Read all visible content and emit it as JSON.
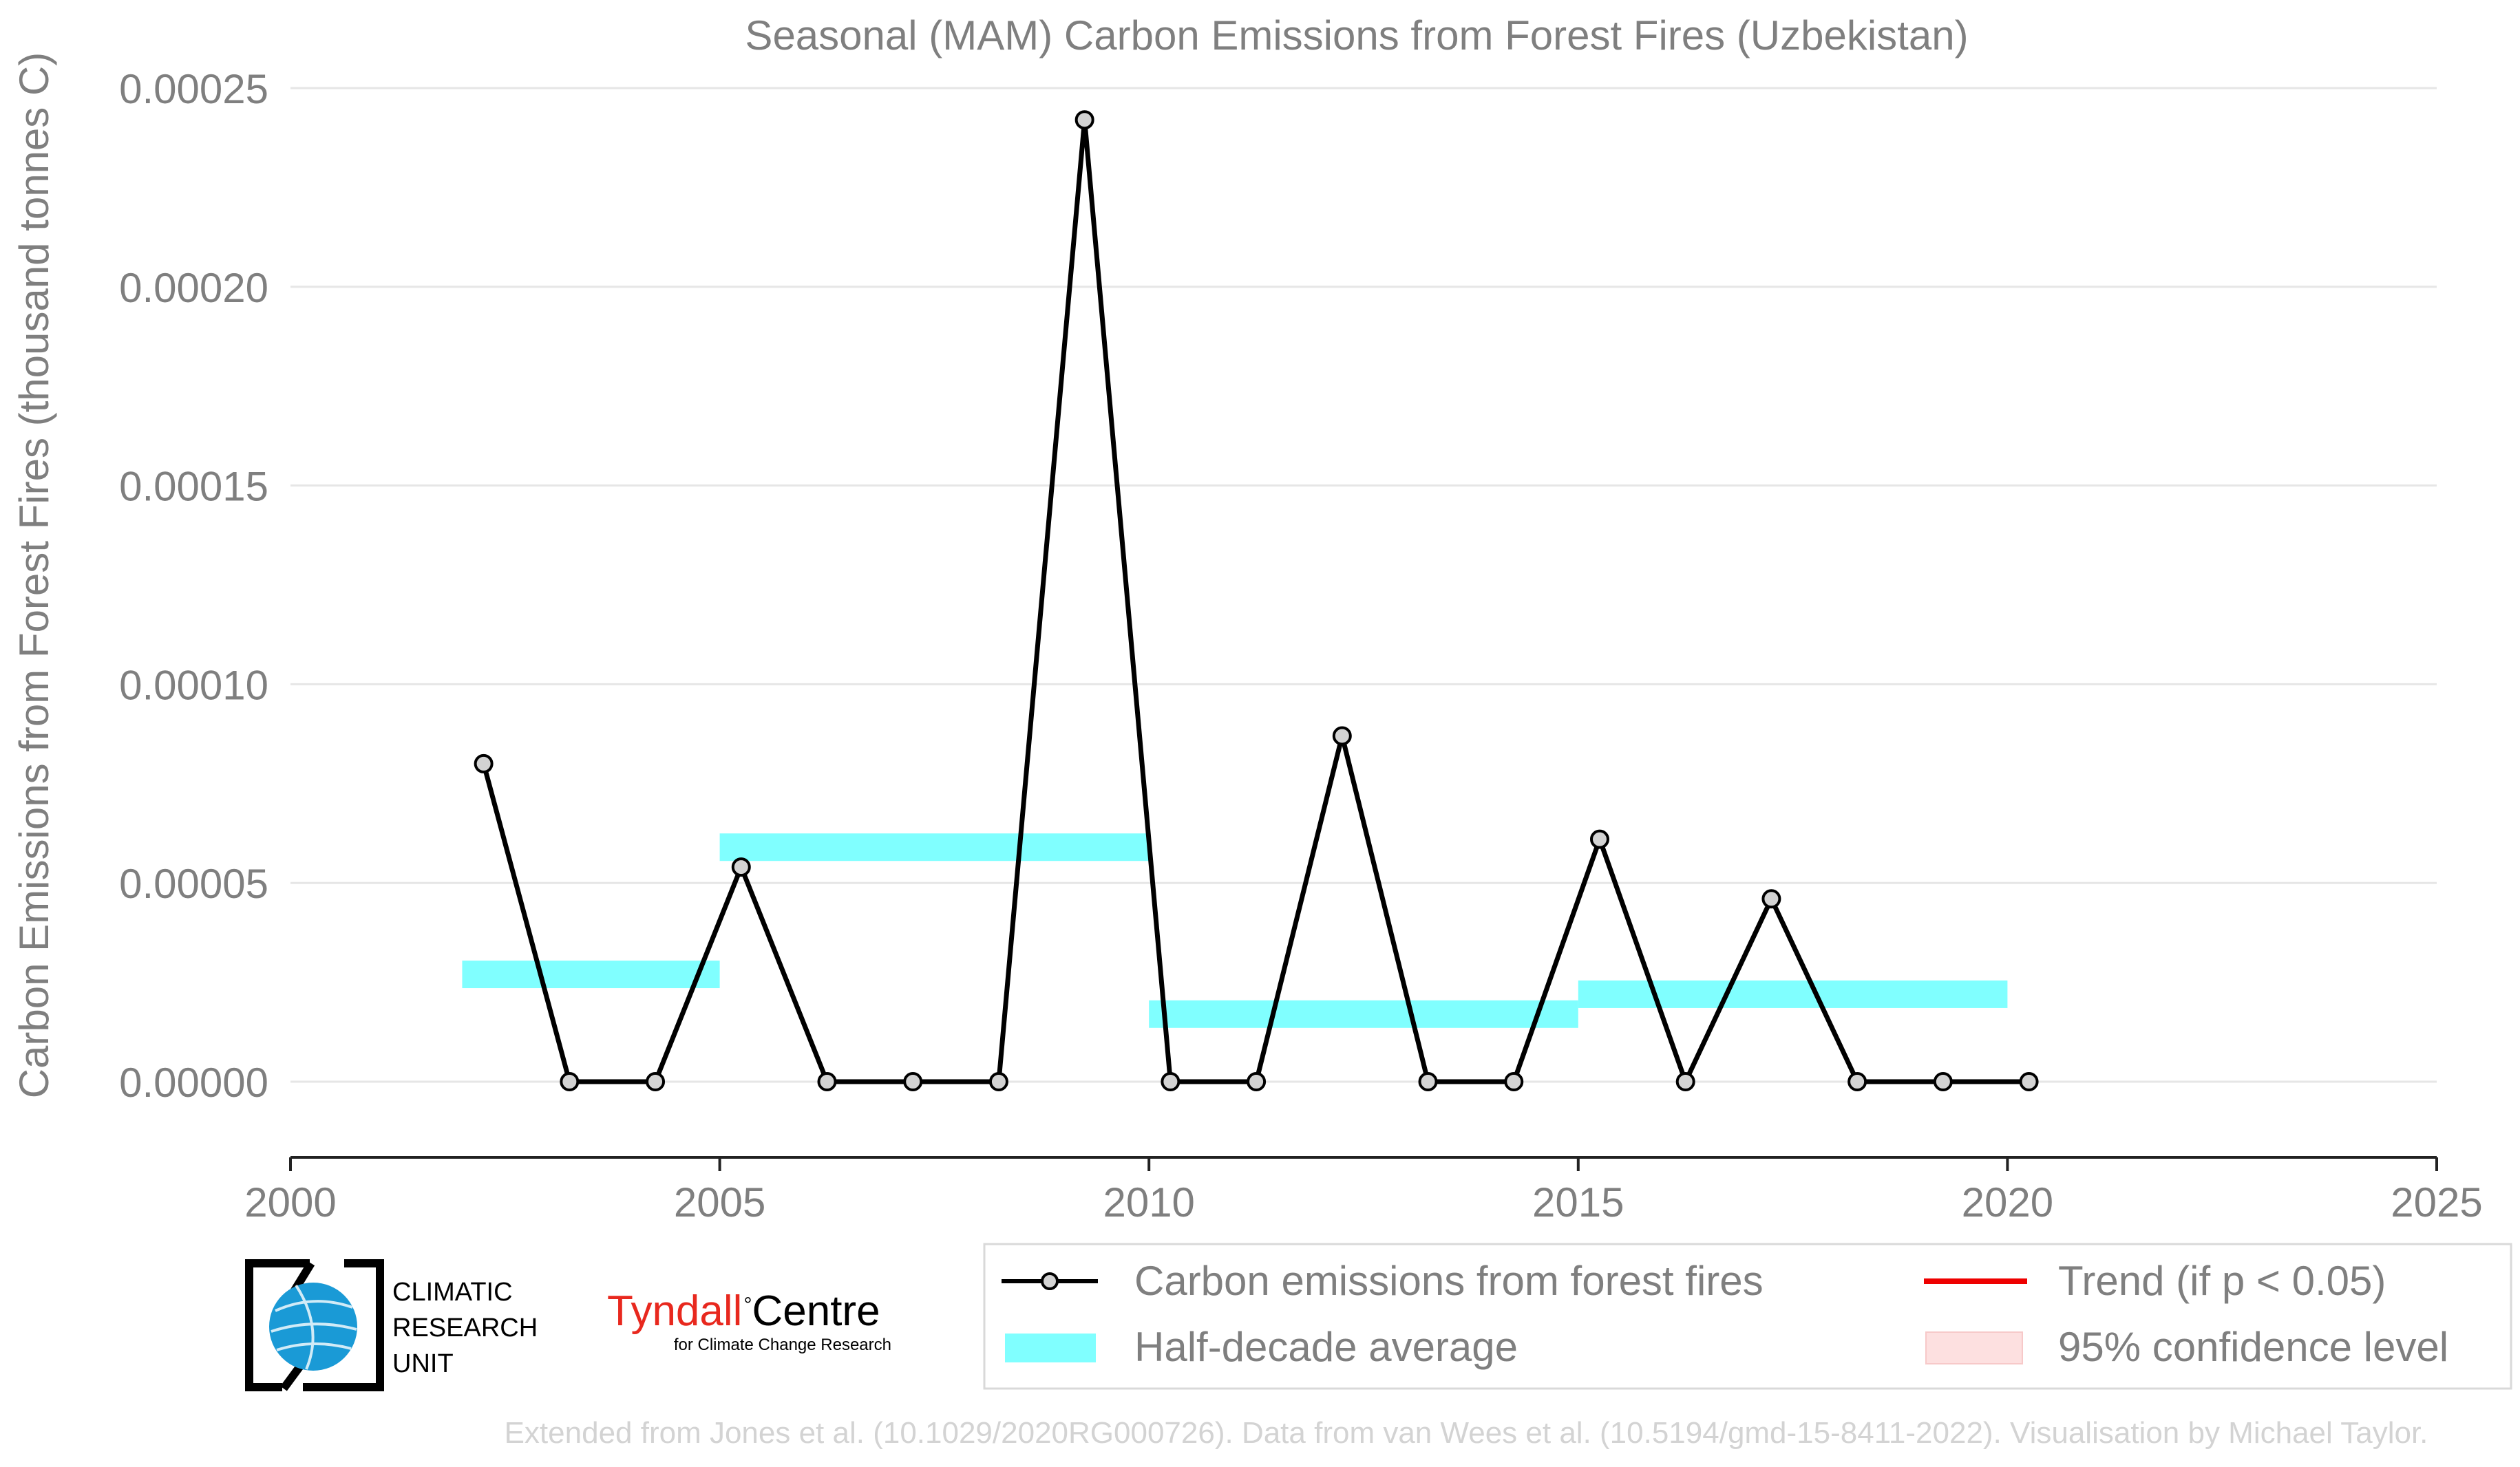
{
  "chart_data": {
    "type": "line",
    "title": "Seasonal (MAM) Carbon Emissions from Forest Fires (Uzbekistan)",
    "xlabel": "",
    "ylabel": "Carbon Emissions from Forest Fires (thousand tonnes C)",
    "xlim": [
      2000,
      2025
    ],
    "ylim": [
      -1e-05,
      0.00025
    ],
    "x_ticks": [
      2000,
      2005,
      2010,
      2015,
      2020,
      2025
    ],
    "y_ticks": [
      0.0,
      5e-05,
      0.0001,
      0.00015,
      0.0002,
      0.00025
    ],
    "y_tick_labels": [
      "0.00000",
      "0.00005",
      "0.00010",
      "0.00015",
      "0.00020",
      "0.00025"
    ],
    "grid": "horizontal",
    "series": [
      {
        "name": "Carbon emissions from forest fires",
        "color": "#000000",
        "marker_fill": "#d3d3d3",
        "x": [
          2002.25,
          2003.25,
          2004.25,
          2005.25,
          2006.25,
          2007.25,
          2008.25,
          2009.25,
          2010.25,
          2011.25,
          2012.25,
          2013.25,
          2014.25,
          2015.25,
          2016.25,
          2017.25,
          2018.25,
          2019.25,
          2020.25
        ],
        "y": [
          8e-05,
          0.0,
          0.0,
          5.4e-05,
          0.0,
          0.0,
          0.0,
          0.000242,
          0.0,
          0.0,
          8.7e-05,
          0.0,
          0.0,
          6.1e-05,
          0.0,
          4.6e-05,
          0.0,
          0.0,
          0.0
        ]
      }
    ],
    "half_decade_average": {
      "name": "Half-decade average",
      "color": "#80ffff",
      "segments": [
        {
          "x_start": 2002,
          "x_end": 2005,
          "y": 2.7e-05
        },
        {
          "x_start": 2005,
          "x_end": 2010,
          "y": 5.9e-05
        },
        {
          "x_start": 2010,
          "x_end": 2015,
          "y": 1.7e-05
        },
        {
          "x_start": 2015,
          "x_end": 2020,
          "y": 2.2e-05
        }
      ]
    },
    "legend": {
      "position": "bottom-right",
      "items": [
        {
          "label": "Carbon emissions from forest fires",
          "kind": "line-marker",
          "color": "#000000"
        },
        {
          "label": "Trend (if p < 0.05)",
          "kind": "line",
          "color": "#ee0000"
        },
        {
          "label": "Half-decade average",
          "kind": "band",
          "color": "#80ffff"
        },
        {
          "label": "95% confidence level",
          "kind": "band",
          "color": "#fde0e0"
        }
      ]
    }
  },
  "logos": {
    "cru": {
      "line1": "CLIMATIC",
      "line2": "RESEARCH",
      "line3": "UNIT"
    },
    "tyndall": {
      "name": "Tyndall",
      "suffix": "Centre",
      "tagline": "for Climate Change Research",
      "color": "#e8281e"
    }
  },
  "footer": {
    "credit": "Extended from Jones et al. (10.1029/2020RG000726). Data from van Wees et al. (10.5194/gmd-15-8411-2022). Visualisation by Michael Taylor."
  },
  "colors": {
    "text": "#7f7f7f",
    "grid": "#e6e6e6",
    "axis": "#222222",
    "footer": "#d3d3d3"
  }
}
